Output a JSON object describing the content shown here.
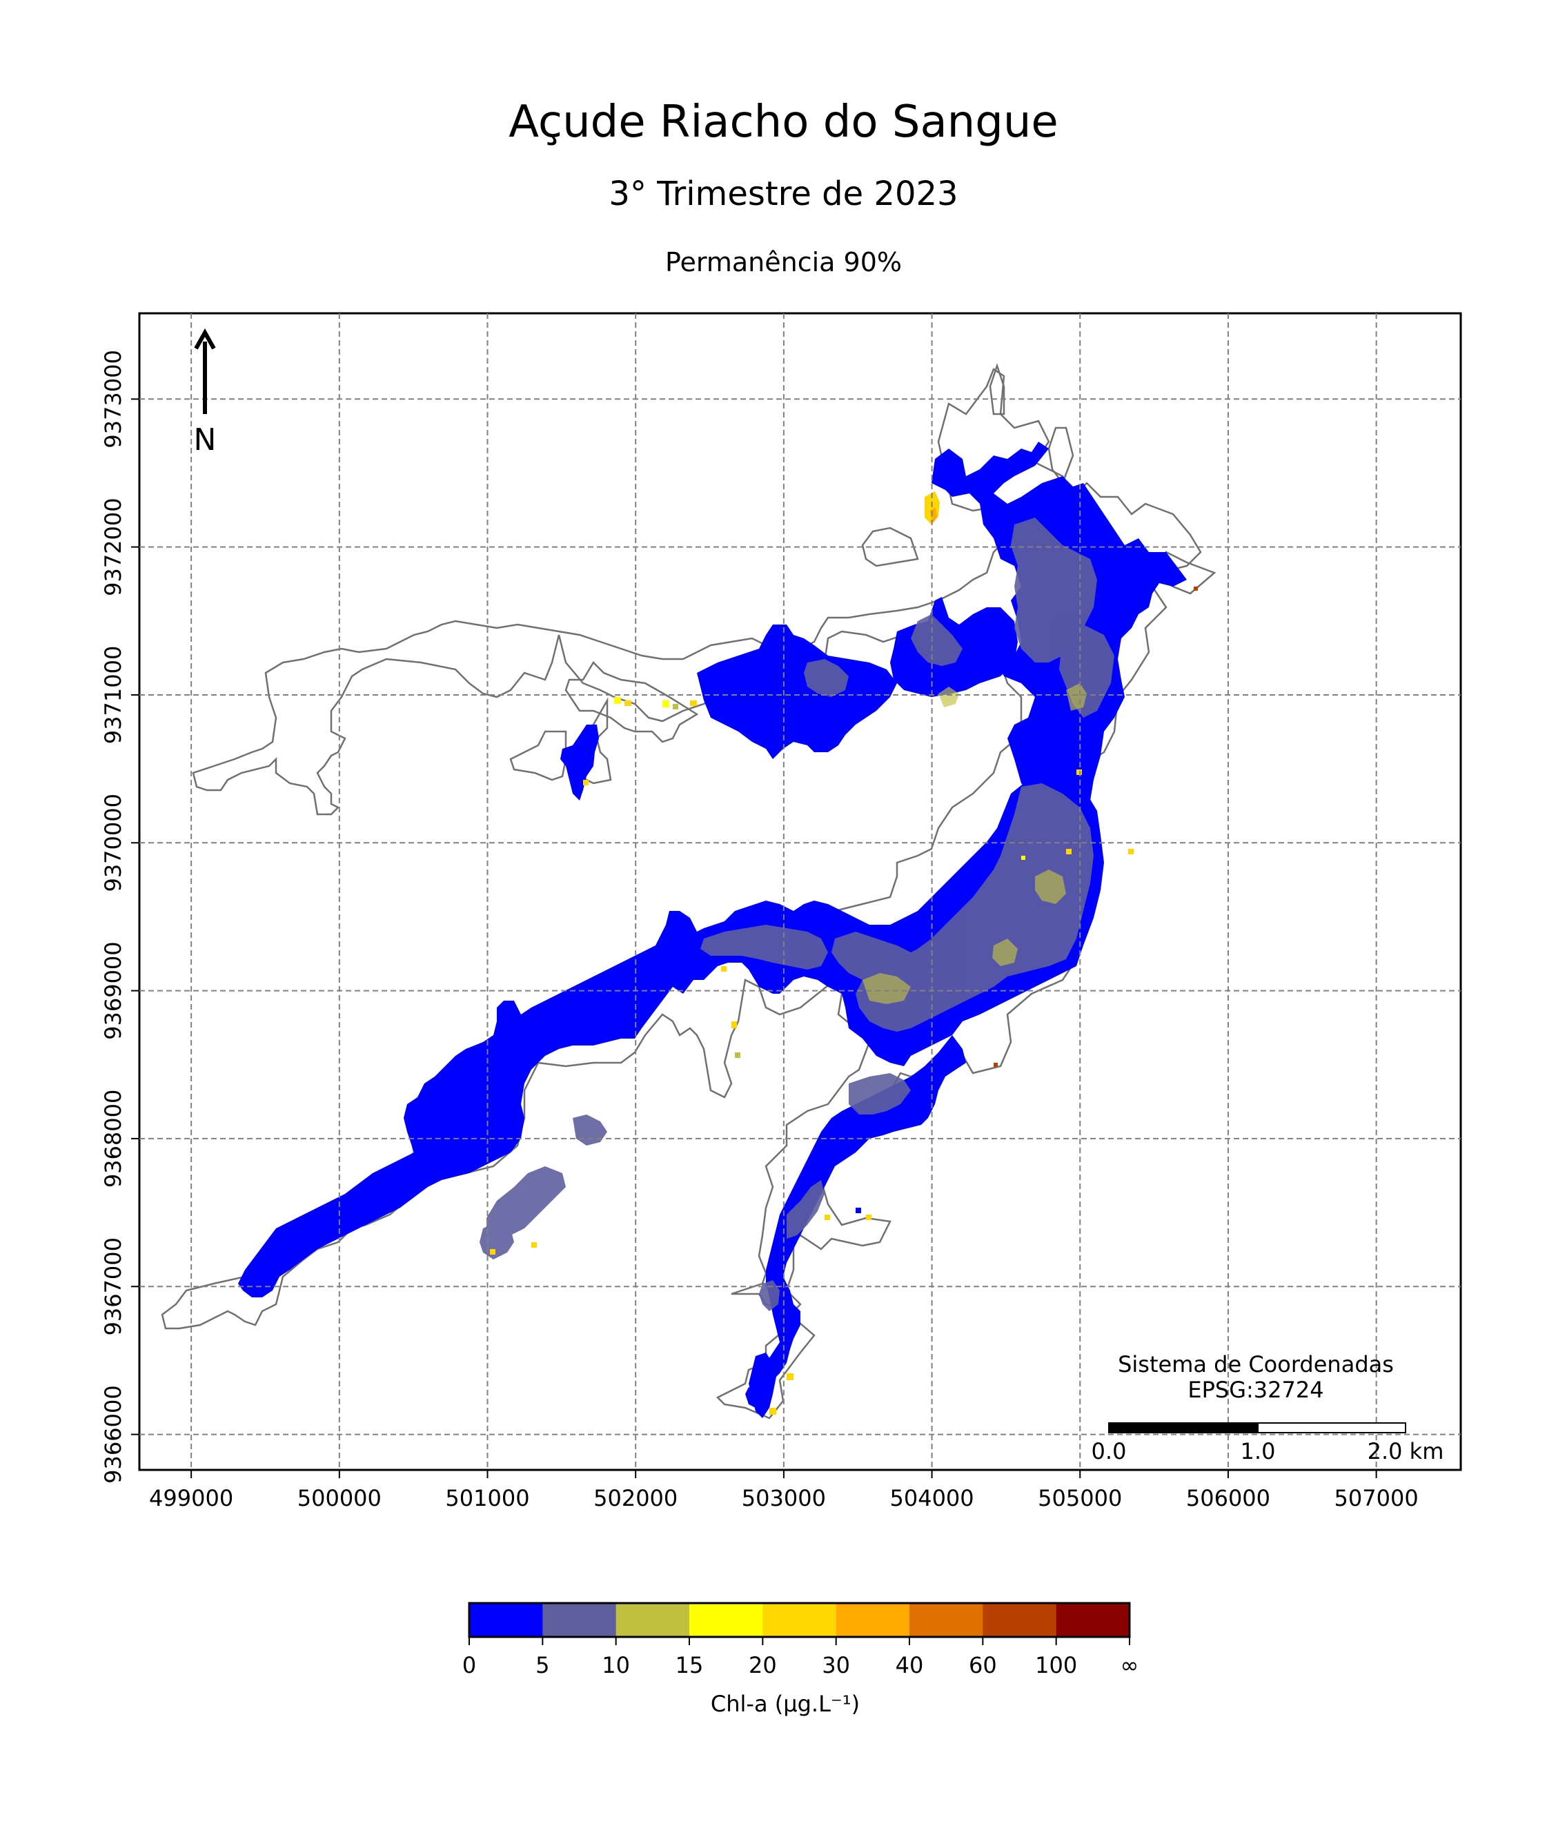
{
  "title": "Açude Riacho do Sangue",
  "subtitle": "3° Trimestre de 2023",
  "subsubtitle": "Permanência 90%",
  "north_label": "N",
  "crs_line1": "Sistema de Coordenadas",
  "crs_line2": "EPSG:32724",
  "scale_labels": [
    "0.0",
    "1.0",
    "2.0 km"
  ],
  "axes": {
    "x_ticks": [
      499000,
      500000,
      501000,
      502000,
      503000,
      504000,
      505000,
      506000,
      507000
    ],
    "y_ticks": [
      9366000,
      9367000,
      9368000,
      9369000,
      9370000,
      9371000,
      9372000,
      9373000
    ],
    "xlim": [
      498650,
      507570
    ],
    "ylim": [
      9365760,
      9373580
    ],
    "grid": true
  },
  "colorbar": {
    "label": "Chl-a (μg.L⁻¹)",
    "ticks": [
      "0",
      "5",
      "10",
      "15",
      "20",
      "30",
      "40",
      "60",
      "100",
      "∞"
    ],
    "colors": [
      "#0000ff",
      "#5f5f9f",
      "#c0c040",
      "#ffff00",
      "#ffd700",
      "#ffaa00",
      "#e07000",
      "#b84000",
      "#8b0000"
    ]
  },
  "water_classes": {
    "main": "#0000ff",
    "mid": "#5f5f9f"
  }
}
